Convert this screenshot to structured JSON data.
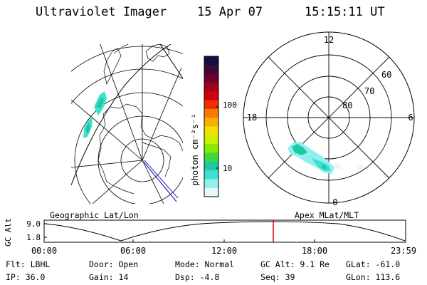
{
  "header": {
    "instrument": "Ultraviolet Imager",
    "date": "15 Apr 07",
    "time": "15:15:11 UT"
  },
  "colorbar": {
    "label": "photon cm⁻²s⁻¹",
    "ticks": [
      "100",
      "10"
    ],
    "colors": [
      "#101040",
      "#3a0a3a",
      "#6a0030",
      "#a00018",
      "#d00010",
      "#f03000",
      "#f87800",
      "#f8b000",
      "#f0e000",
      "#c8f000",
      "#88e800",
      "#40d840",
      "#20c8a0",
      "#40e0d0",
      "#90f0f0",
      "#e8f8f8"
    ]
  },
  "polar": {
    "labels": {
      "top": "12",
      "left": "18",
      "right": "6",
      "bottom": "0"
    },
    "lat_labels": [
      "60",
      "70",
      "80"
    ]
  },
  "map_labels": {
    "left": "Geographic Lat/Lon",
    "right": "Apex MLat/MLT"
  },
  "timeline": {
    "ylabel": "GC Alt",
    "yticks": [
      "9.0",
      "1.8"
    ],
    "xticks": [
      "00:00",
      "06:00",
      "12:00",
      "18:00",
      "23:59"
    ]
  },
  "info": {
    "flt": "Flt: LBHL",
    "ip": "IP: 36.0",
    "door": "Door: Open",
    "gain": "Gain: 14",
    "mode": "Mode: Normal",
    "dsp": "Dsp:    -4.8",
    "gcalt": "GC Alt: 9.1 Re",
    "seq": "Seq: 39",
    "glat": "GLat: -61.0",
    "glon": "GLon: 113.6"
  }
}
